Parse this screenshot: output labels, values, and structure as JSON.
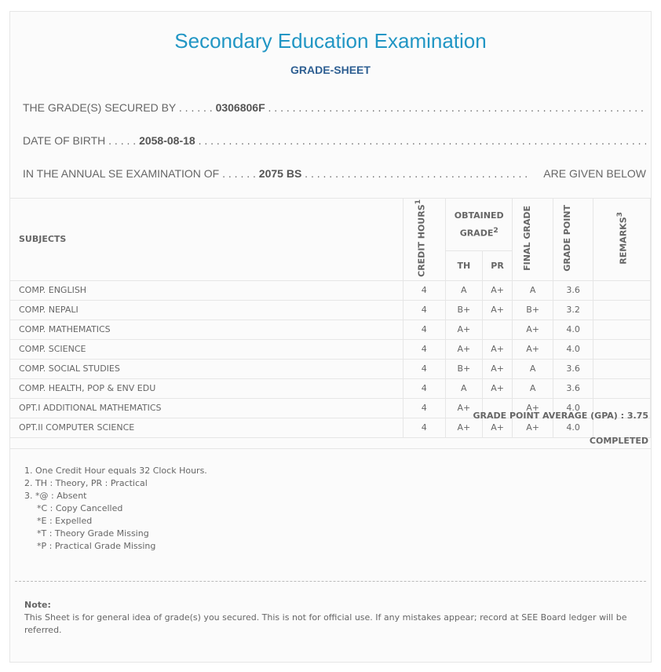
{
  "title": "Secondary Education Examination",
  "subtitle": "GRADE-SHEET",
  "info": {
    "secured_label": "THE GRADE(S) SECURED BY . . . . . .",
    "symbol_no": "0306806F",
    "dob_label": "DATE OF BIRTH . . . . .",
    "dob": "2058-08-18",
    "exam_label": "IN THE ANNUAL SE EXAMINATION OF . . . . . .",
    "exam_year": "2075 BS",
    "given_below": "ARE GIVEN BELOW"
  },
  "table": {
    "headers": {
      "subjects": "SUBJECTS",
      "credit": "CREDIT HOURS",
      "credit_sup": "1",
      "obtained": "OBTAINED GRADE",
      "obtained_sup": "2",
      "th": "TH",
      "pr": "PR",
      "final": "FINAL GRADE",
      "gp": "GRADE POINT",
      "remarks": "REMARKS",
      "remarks_sup": "3"
    },
    "rows": [
      {
        "subject": "COMP. ENGLISH",
        "credit": "4",
        "th": "A",
        "pr": "A+",
        "final": "A",
        "gp": "3.6"
      },
      {
        "subject": "COMP. NEPALI",
        "credit": "4",
        "th": "B+",
        "pr": "A+",
        "final": "B+",
        "gp": "3.2"
      },
      {
        "subject": "COMP. MATHEMATICS",
        "credit": "4",
        "th": "A+",
        "pr": "",
        "final": "A+",
        "gp": "4.0"
      },
      {
        "subject": "COMP. SCIENCE",
        "credit": "4",
        "th": "A+",
        "pr": "A+",
        "final": "A+",
        "gp": "4.0"
      },
      {
        "subject": "COMP. SOCIAL STUDIES",
        "credit": "4",
        "th": "B+",
        "pr": "A+",
        "final": "A",
        "gp": "3.6"
      },
      {
        "subject": "COMP. HEALTH, POP & ENV EDU",
        "credit": "4",
        "th": "A",
        "pr": "A+",
        "final": "A",
        "gp": "3.6"
      },
      {
        "subject": "OPT.I ADDITIONAL MATHEMATICS",
        "credit": "4",
        "th": "A+",
        "pr": "",
        "final": "A+",
        "gp": "4.0"
      },
      {
        "subject": "OPT.II COMPUTER SCIENCE",
        "credit": "4",
        "th": "A+",
        "pr": "A+",
        "final": "A+",
        "gp": "4.0"
      }
    ]
  },
  "gpa": "GRADE POINT AVERAGE (GPA) : 3.75",
  "status": "COMPLETED",
  "footnotes": [
    "1. One Credit Hour equals 32 Clock Hours.",
    "2. TH : Theory, PR : Practical",
    "3. *@ : Absent",
    "*C : Copy Cancelled",
    "*E : Expelled",
    "*T : Theory Grade Missing",
    "*P : Practical Grade Missing"
  ],
  "note": {
    "label": "Note:",
    "text": "This Sheet is for general idea of grade(s) you secured. This is not for official use. If any mistakes appear; record at SEE Board ledger will be referred."
  },
  "colors": {
    "title": "#2196c4",
    "subtitle": "#2e5f92"
  }
}
